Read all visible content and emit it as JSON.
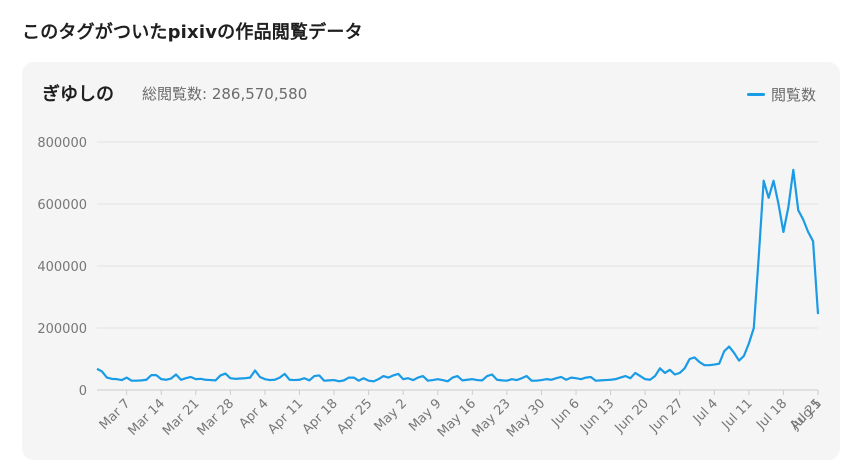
{
  "page": {
    "heading": "このタグがついたpixivの作品閲覧データ"
  },
  "card": {
    "tag_name": "ぎゆしの",
    "total_views": "総閲覧数: 286,570,580"
  },
  "colors": {
    "line": "#1a9be6",
    "grid": "#e3e3e3",
    "axis": "#cccccc"
  },
  "chart_data": {
    "type": "line",
    "ylim": [
      0,
      800000
    ],
    "yticks": [
      0,
      200000,
      400000,
      600000,
      800000
    ],
    "grid": true,
    "legend_position": "top-right",
    "x_start": "Mar 1",
    "x_end": "Aug 1",
    "xticks": [
      "Mar 7",
      "Mar 14",
      "Mar 21",
      "Mar 28",
      "Apr 4",
      "Apr 11",
      "Apr 18",
      "Apr 25",
      "May 2",
      "May 9",
      "May 16",
      "May 23",
      "May 30",
      "Jun 6",
      "Jun 13",
      "Jun 20",
      "Jun 27",
      "Jul 4",
      "Jul 11",
      "Jul 18",
      "Jul 25",
      "Aug 1"
    ],
    "series": [
      {
        "name": "閲覧数",
        "values": [
          68000,
          60000,
          40000,
          36000,
          35000,
          32000,
          40000,
          30000,
          30000,
          31000,
          33000,
          48000,
          48000,
          35000,
          33000,
          37000,
          50000,
          33000,
          38000,
          42000,
          35000,
          36000,
          33000,
          32000,
          31000,
          47000,
          53000,
          38000,
          36000,
          37000,
          38000,
          40000,
          63000,
          42000,
          35000,
          32000,
          33000,
          40000,
          52000,
          33000,
          32000,
          33000,
          38000,
          31000,
          45000,
          47000,
          30000,
          31000,
          32000,
          28000,
          31000,
          40000,
          40000,
          30000,
          38000,
          30000,
          28000,
          35000,
          45000,
          40000,
          47000,
          52000,
          35000,
          38000,
          32000,
          40000,
          45000,
          30000,
          32000,
          35000,
          32000,
          28000,
          40000,
          45000,
          31000,
          33000,
          35000,
          32000,
          31000,
          45000,
          50000,
          33000,
          31000,
          30000,
          35000,
          32000,
          38000,
          45000,
          30000,
          30000,
          32000,
          35000,
          33000,
          38000,
          42000,
          33000,
          40000,
          38000,
          35000,
          40000,
          42000,
          30000,
          31000,
          32000,
          33000,
          35000,
          40000,
          45000,
          38000,
          55000,
          45000,
          35000,
          33000,
          45000,
          70000,
          55000,
          65000,
          50000,
          55000,
          70000,
          100000,
          105000,
          90000,
          80000,
          80000,
          82000,
          85000,
          125000,
          140000,
          120000,
          95000,
          110000,
          150000,
          200000,
          430000,
          675000,
          620000,
          675000,
          600000,
          510000,
          590000,
          710000,
          580000,
          550000,
          510000,
          480000,
          245000
        ]
      }
    ]
  }
}
